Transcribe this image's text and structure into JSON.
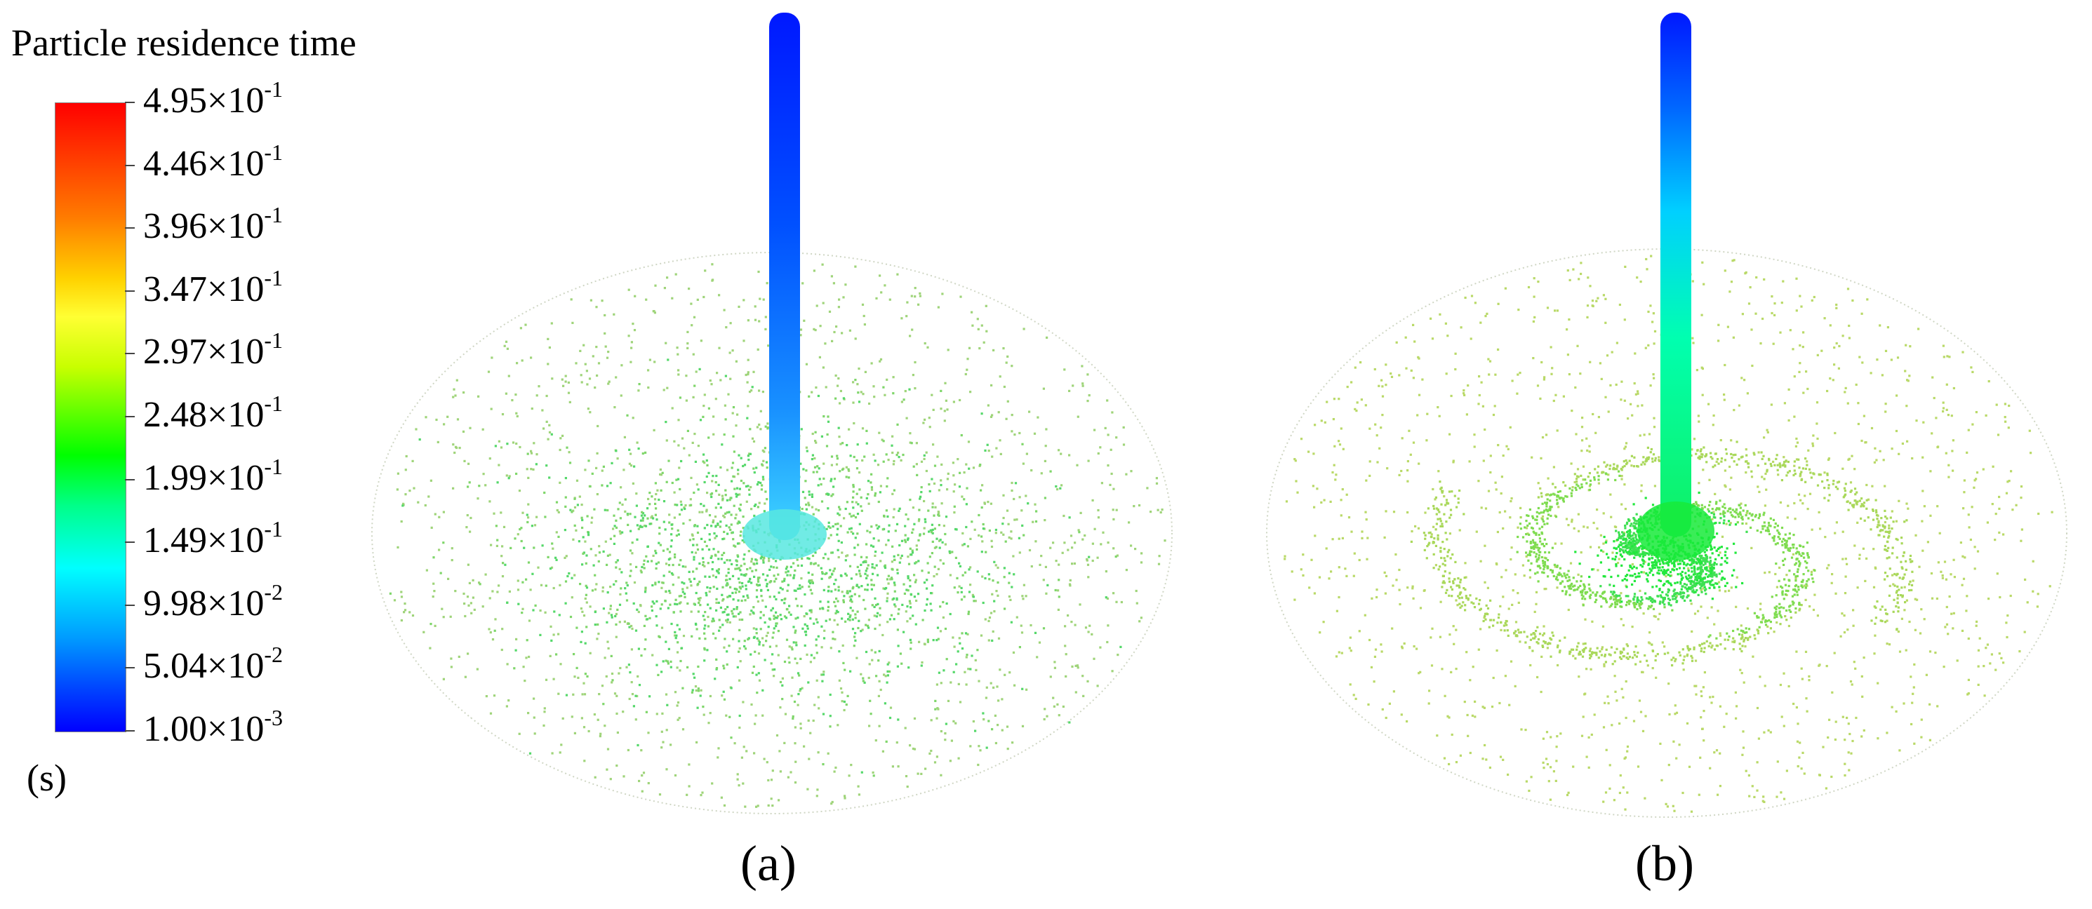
{
  "legend": {
    "title": "Particle residence time",
    "unit": "(s)",
    "ticks": [
      {
        "mantissa": "4.95",
        "exponent": "-1"
      },
      {
        "mantissa": "4.46",
        "exponent": "-1"
      },
      {
        "mantissa": "3.96",
        "exponent": "-1"
      },
      {
        "mantissa": "3.47",
        "exponent": "-1"
      },
      {
        "mantissa": "2.97",
        "exponent": "-1"
      },
      {
        "mantissa": "2.48",
        "exponent": "-1"
      },
      {
        "mantissa": "1.99",
        "exponent": "-1"
      },
      {
        "mantissa": "1.49",
        "exponent": "-1"
      },
      {
        "mantissa": "9.98",
        "exponent": "-2"
      },
      {
        "mantissa": "5.04",
        "exponent": "-2"
      },
      {
        "mantissa": "1.00",
        "exponent": "-3"
      }
    ],
    "colormap": [
      "#0000ff",
      "#00ffff",
      "#00ff00",
      "#ffff00",
      "#ff0000"
    ]
  },
  "panels": [
    {
      "label": "(a)",
      "pattern": "scattered"
    },
    {
      "label": "(b)",
      "pattern": "swirl"
    }
  ]
}
